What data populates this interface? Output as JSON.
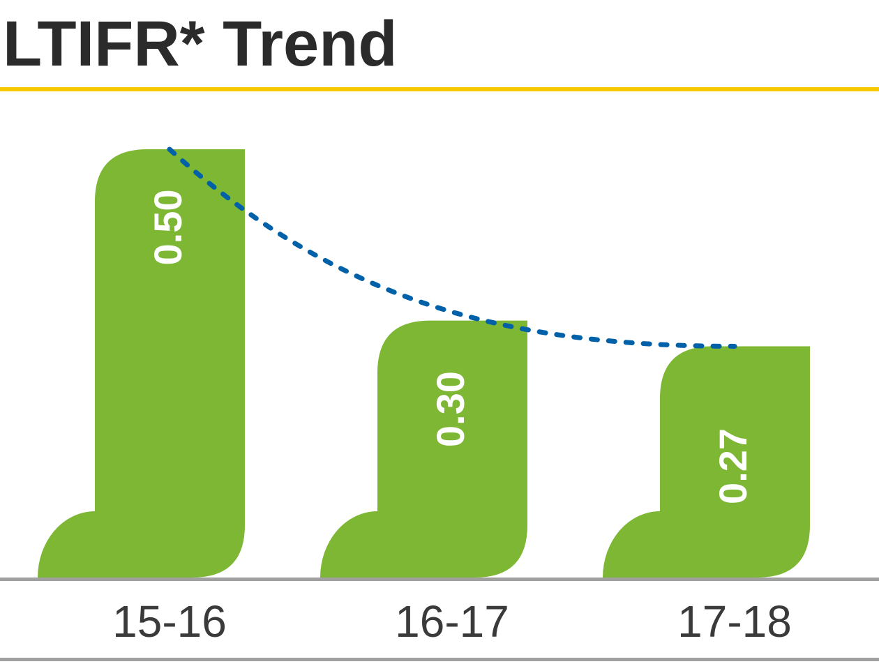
{
  "chart_data": {
    "type": "bar",
    "title": "LTIFR* Trend",
    "categories": [
      "15-16",
      "16-17",
      "17-18"
    ],
    "values": [
      0.5,
      0.3,
      0.27
    ],
    "value_labels": [
      "0.50",
      "0.30",
      "0.27"
    ],
    "color": "#7db733",
    "trend_color": "#0060a8"
  }
}
